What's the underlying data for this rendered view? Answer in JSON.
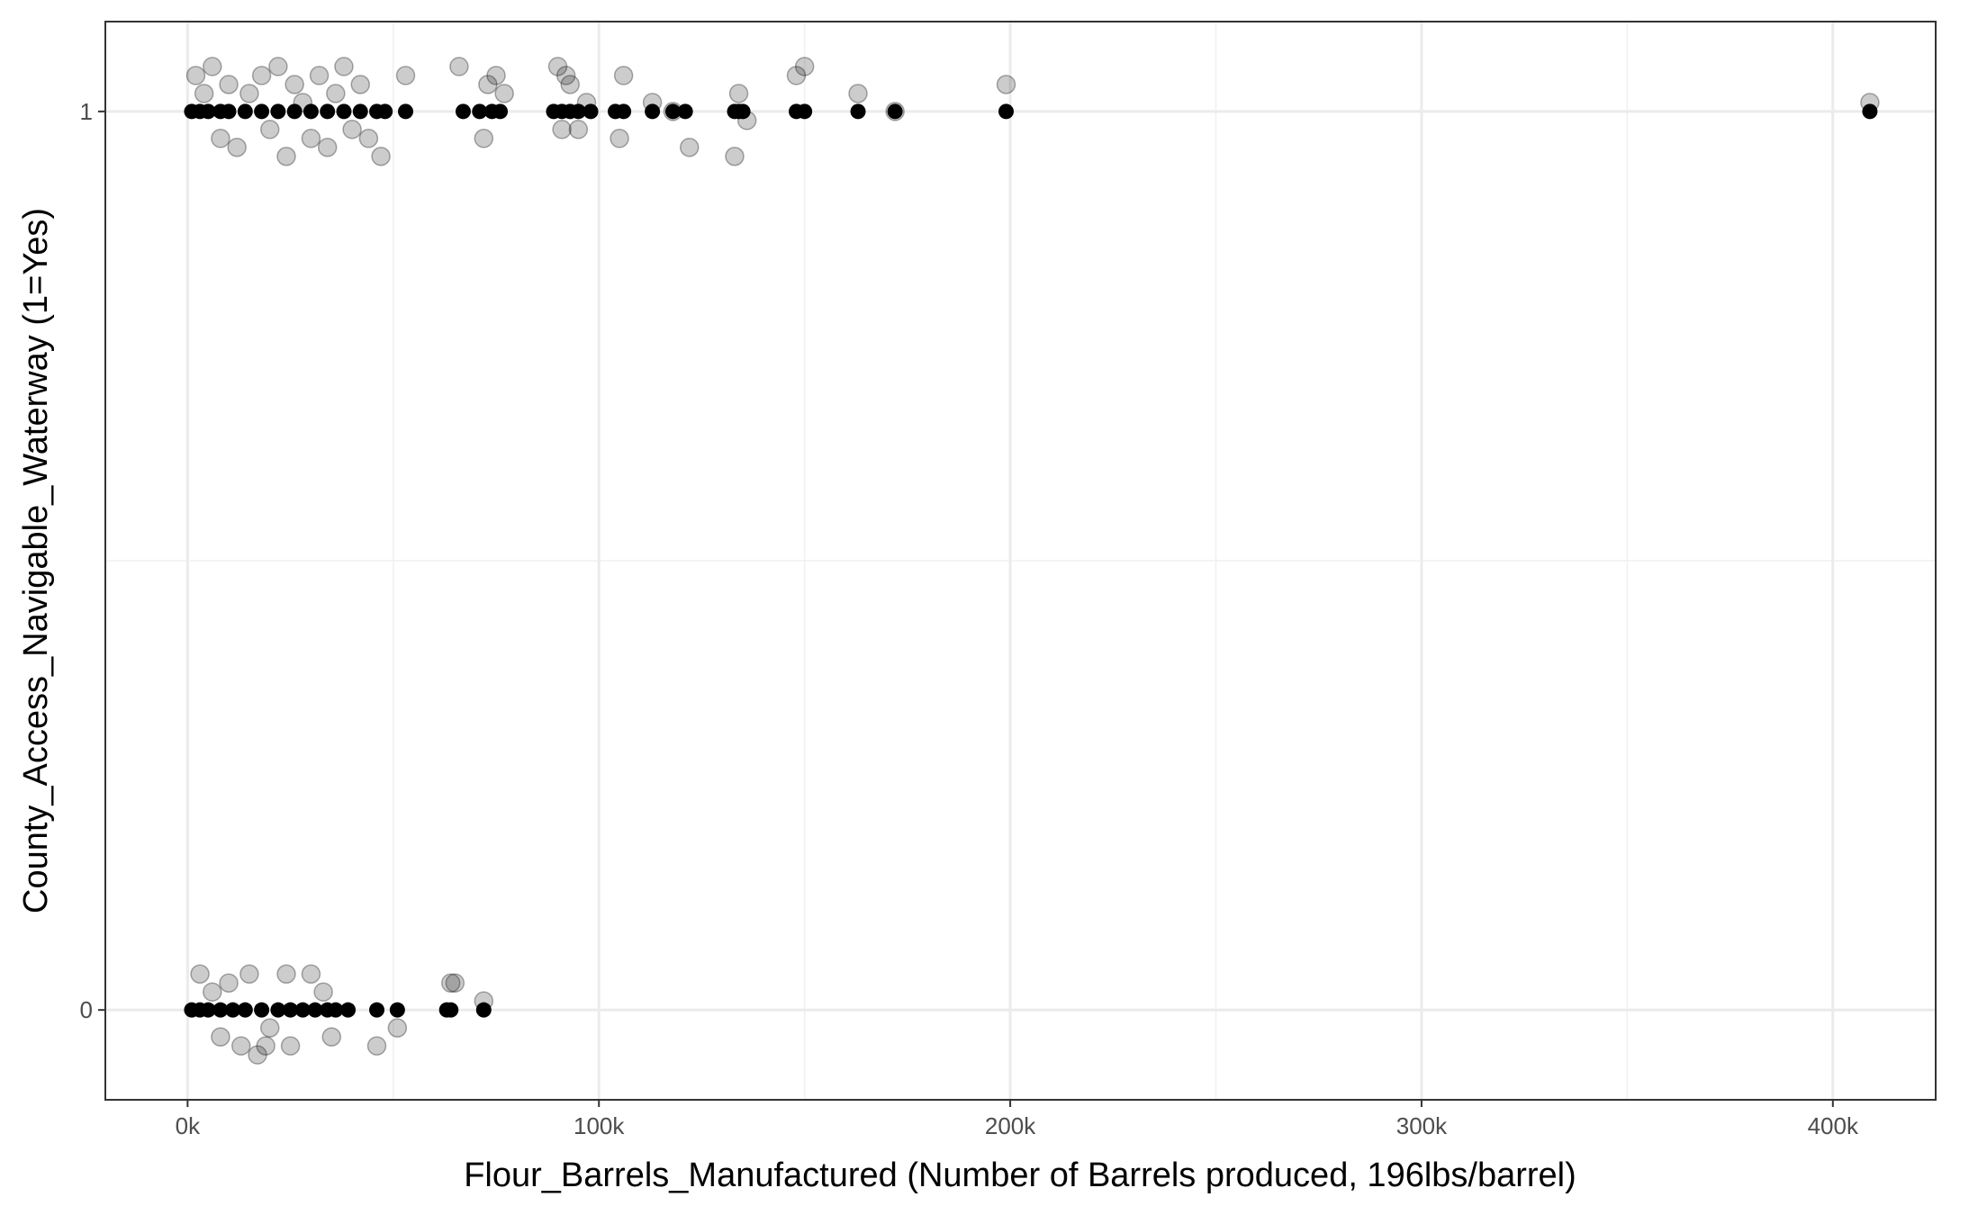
{
  "chart_data": {
    "type": "scatter",
    "title": "",
    "xlabel": "Flour_Barrels_Manufactured (Number of Barrels produced, 196lbs/barrel)",
    "ylabel": "County_Access_Navigable_Waterway (1=Yes)",
    "xlim": [
      -20000,
      425000
    ],
    "ylim": [
      -0.1,
      1.1
    ],
    "x_ticks": [
      0,
      100000,
      200000,
      300000,
      400000
    ],
    "x_tick_labels": [
      "0k",
      "100k",
      "200k",
      "300k",
      "400k"
    ],
    "y_ticks": [
      0,
      1
    ],
    "y_tick_labels": [
      "0",
      "1"
    ],
    "grid": true,
    "legend": "none",
    "series": [
      {
        "style": "observed",
        "points": [
          [
            2000,
            1.04
          ],
          [
            4000,
            1.02
          ],
          [
            6000,
            1.05
          ],
          [
            8000,
            0.97
          ],
          [
            10000,
            1.03
          ],
          [
            12000,
            0.96
          ],
          [
            15000,
            1.02
          ],
          [
            18000,
            1.04
          ],
          [
            20000,
            0.98
          ],
          [
            22000,
            1.05
          ],
          [
            24000,
            0.95
          ],
          [
            26000,
            1.03
          ],
          [
            28000,
            1.01
          ],
          [
            30000,
            0.97
          ],
          [
            32000,
            1.04
          ],
          [
            34000,
            0.96
          ],
          [
            36000,
            1.02
          ],
          [
            38000,
            1.05
          ],
          [
            40000,
            0.98
          ],
          [
            42000,
            1.03
          ],
          [
            44000,
            0.97
          ],
          [
            47000,
            0.95
          ],
          [
            53000,
            1.04
          ],
          [
            66000,
            1.05
          ],
          [
            72000,
            0.97
          ],
          [
            73000,
            1.03
          ],
          [
            75000,
            1.04
          ],
          [
            77000,
            1.02
          ],
          [
            90000,
            1.05
          ],
          [
            91000,
            0.98
          ],
          [
            92000,
            1.04
          ],
          [
            93000,
            1.03
          ],
          [
            95000,
            0.98
          ],
          [
            97000,
            1.01
          ],
          [
            105000,
            0.97
          ],
          [
            106000,
            1.04
          ],
          [
            113000,
            1.01
          ],
          [
            118000,
            1.0
          ],
          [
            122000,
            0.96
          ],
          [
            133000,
            0.95
          ],
          [
            134000,
            1.02
          ],
          [
            136000,
            0.99
          ],
          [
            148000,
            1.04
          ],
          [
            150000,
            1.05
          ],
          [
            163000,
            1.02
          ],
          [
            172000,
            1.0
          ],
          [
            199000,
            1.03
          ],
          [
            409000,
            1.01
          ],
          [
            3000,
            0.04
          ],
          [
            6000,
            0.02
          ],
          [
            8000,
            -0.03
          ],
          [
            10000,
            0.03
          ],
          [
            13000,
            -0.04
          ],
          [
            15000,
            0.04
          ],
          [
            17000,
            -0.05
          ],
          [
            19000,
            -0.04
          ],
          [
            20000,
            -0.02
          ],
          [
            24000,
            0.04
          ],
          [
            25000,
            -0.04
          ],
          [
            30000,
            0.04
          ],
          [
            33000,
            0.02
          ],
          [
            35000,
            -0.03
          ],
          [
            46000,
            -0.04
          ],
          [
            51000,
            -0.02
          ],
          [
            64000,
            0.03
          ],
          [
            65000,
            0.03
          ],
          [
            72000,
            0.01
          ]
        ]
      },
      {
        "style": "predicted",
        "points": [
          [
            1000,
            1
          ],
          [
            3000,
            1
          ],
          [
            5000,
            1
          ],
          [
            8000,
            1
          ],
          [
            10000,
            1
          ],
          [
            14000,
            1
          ],
          [
            18000,
            1
          ],
          [
            22000,
            1
          ],
          [
            26000,
            1
          ],
          [
            30000,
            1
          ],
          [
            34000,
            1
          ],
          [
            38000,
            1
          ],
          [
            42000,
            1
          ],
          [
            46000,
            1
          ],
          [
            48000,
            1
          ],
          [
            53000,
            1
          ],
          [
            67000,
            1
          ],
          [
            71000,
            1
          ],
          [
            74000,
            1
          ],
          [
            76000,
            1
          ],
          [
            89000,
            1
          ],
          [
            91000,
            1
          ],
          [
            93000,
            1
          ],
          [
            95000,
            1
          ],
          [
            98000,
            1
          ],
          [
            104000,
            1
          ],
          [
            106000,
            1
          ],
          [
            113000,
            1
          ],
          [
            118000,
            1
          ],
          [
            121000,
            1
          ],
          [
            133000,
            1
          ],
          [
            134000,
            1
          ],
          [
            135000,
            1
          ],
          [
            148000,
            1
          ],
          [
            150000,
            1
          ],
          [
            163000,
            1
          ],
          [
            172000,
            1
          ],
          [
            199000,
            1
          ],
          [
            409000,
            1
          ],
          [
            1000,
            0
          ],
          [
            3000,
            0
          ],
          [
            5000,
            0
          ],
          [
            8000,
            0
          ],
          [
            11000,
            0
          ],
          [
            14000,
            0
          ],
          [
            18000,
            0
          ],
          [
            22000,
            0
          ],
          [
            25000,
            0
          ],
          [
            28000,
            0
          ],
          [
            31000,
            0
          ],
          [
            34000,
            0
          ],
          [
            36000,
            0
          ],
          [
            39000,
            0
          ],
          [
            46000,
            0
          ],
          [
            51000,
            0
          ],
          [
            63000,
            0
          ],
          [
            64000,
            0
          ],
          [
            72000,
            0
          ]
        ]
      }
    ]
  }
}
